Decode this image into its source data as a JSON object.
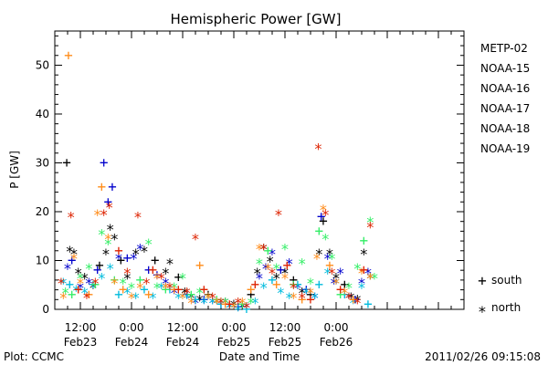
{
  "chart_data": {
    "type": "scatter",
    "title": "Hemispheric Power [GW]",
    "ylabel": "P [GW]",
    "xlabel": "Date and Time",
    "ylim": [
      0,
      57
    ],
    "yticks": [
      0,
      10,
      20,
      30,
      40,
      50
    ],
    "xlim": [
      0,
      96
    ],
    "xticks": [
      {
        "x": 6,
        "time": "12:00",
        "date": "Feb23"
      },
      {
        "x": 18,
        "time": "0:00",
        "date": "Feb24"
      },
      {
        "x": 30,
        "time": "12:00",
        "date": "Feb24"
      },
      {
        "x": 42,
        "time": "0:00",
        "date": "Feb25"
      },
      {
        "x": 54,
        "time": "12:00",
        "date": "Feb25"
      },
      {
        "x": 66,
        "time": "0:00",
        "date": "Feb26"
      }
    ],
    "marker_legend": [
      {
        "glyph": "+",
        "label": "south"
      },
      {
        "glyph": "*",
        "label": "north"
      }
    ],
    "series": [
      {
        "name": "METP-02",
        "color": "#000000",
        "points": [
          [
            2.8,
            30,
            "+"
          ],
          [
            3.5,
            12.5,
            "*"
          ],
          [
            4.5,
            12,
            "*"
          ],
          [
            5.5,
            8,
            "*"
          ],
          [
            7,
            7,
            "*"
          ],
          [
            9,
            5,
            "*"
          ],
          [
            10.5,
            9,
            "+"
          ],
          [
            12,
            12,
            "*"
          ],
          [
            13,
            17,
            "*"
          ],
          [
            14,
            15,
            "*"
          ],
          [
            15.5,
            10,
            "+"
          ],
          [
            17,
            7,
            "*"
          ],
          [
            19,
            12,
            "*"
          ],
          [
            21,
            12.5,
            "*"
          ],
          [
            23.5,
            10,
            "+"
          ],
          [
            26,
            8,
            "*"
          ],
          [
            27,
            10,
            "*"
          ],
          [
            29,
            6.5,
            "+"
          ],
          [
            30.5,
            4,
            "*"
          ],
          [
            32,
            3,
            "*"
          ],
          [
            34,
            2.5,
            "*"
          ],
          [
            36,
            3,
            "+"
          ],
          [
            38,
            2,
            "*"
          ],
          [
            40,
            2,
            "*"
          ],
          [
            42,
            1.5,
            "*"
          ],
          [
            44,
            1,
            "*"
          ],
          [
            46,
            3,
            "+"
          ],
          [
            47.5,
            8,
            "*"
          ],
          [
            49,
            13,
            "*"
          ],
          [
            50.5,
            10.5,
            "*"
          ],
          [
            52,
            7,
            "*"
          ],
          [
            54,
            8,
            "*"
          ],
          [
            56,
            6,
            "+"
          ],
          [
            58,
            4,
            "*"
          ],
          [
            60,
            3,
            "+"
          ],
          [
            62,
            12,
            "*"
          ],
          [
            63,
            18,
            "+"
          ],
          [
            64.5,
            12,
            "*"
          ],
          [
            66,
            7,
            "*"
          ],
          [
            68,
            5,
            "+"
          ],
          [
            69.5,
            3,
            "*"
          ],
          [
            71,
            2.5,
            "*"
          ],
          [
            72.5,
            12,
            "*"
          ],
          [
            74,
            7,
            "*"
          ]
        ]
      },
      {
        "name": "NOAA-15",
        "color": "#0000cc",
        "points": [
          [
            3,
            9,
            "*"
          ],
          [
            4,
            10,
            "+"
          ],
          [
            6,
            5,
            "*"
          ],
          [
            8,
            6,
            "*"
          ],
          [
            10,
            8,
            "+"
          ],
          [
            11.5,
            30,
            "+"
          ],
          [
            12.5,
            22,
            "+"
          ],
          [
            13.5,
            25,
            "+"
          ],
          [
            15,
            11,
            "*"
          ],
          [
            17,
            10.5,
            "+"
          ],
          [
            18.5,
            11,
            "*"
          ],
          [
            20,
            13,
            "*"
          ],
          [
            22,
            8,
            "+"
          ],
          [
            24,
            7,
            "+"
          ],
          [
            26,
            6,
            "*"
          ],
          [
            28,
            4,
            "*"
          ],
          [
            31,
            3,
            "+"
          ],
          [
            33,
            2,
            "*"
          ],
          [
            35,
            2,
            "+"
          ],
          [
            37,
            2,
            "*"
          ],
          [
            39,
            1,
            "+"
          ],
          [
            41,
            1,
            "*"
          ],
          [
            43,
            0.5,
            "+"
          ],
          [
            45,
            1,
            "*"
          ],
          [
            48,
            7,
            "*"
          ],
          [
            49.5,
            9,
            "*"
          ],
          [
            51,
            12,
            "*"
          ],
          [
            53,
            8,
            "+"
          ],
          [
            55,
            10,
            "*"
          ],
          [
            57,
            5,
            "*"
          ],
          [
            59,
            4,
            "+"
          ],
          [
            61,
            3,
            "*"
          ],
          [
            62.5,
            19,
            "+"
          ],
          [
            64,
            11,
            "*"
          ],
          [
            65.5,
            6,
            "*"
          ],
          [
            67,
            8,
            "*"
          ],
          [
            69,
            3,
            "*"
          ],
          [
            70.5,
            2,
            "+"
          ],
          [
            72,
            6,
            "*"
          ],
          [
            73.5,
            8,
            "*"
          ]
        ]
      },
      {
        "name": "NOAA-16",
        "color": "#00bbdd",
        "points": [
          [
            2,
            6,
            "*"
          ],
          [
            3.5,
            5,
            "+"
          ],
          [
            5,
            4.5,
            "*"
          ],
          [
            7,
            4,
            "*"
          ],
          [
            9,
            5,
            "+"
          ],
          [
            11,
            7,
            "*"
          ],
          [
            13,
            9,
            "*"
          ],
          [
            15,
            3,
            "+"
          ],
          [
            17,
            4,
            "*"
          ],
          [
            19,
            3,
            "*"
          ],
          [
            21,
            4,
            "+"
          ],
          [
            23,
            3,
            "*"
          ],
          [
            25,
            5,
            "*"
          ],
          [
            27,
            4,
            "+"
          ],
          [
            29,
            3,
            "*"
          ],
          [
            31,
            3,
            "*"
          ],
          [
            33,
            2,
            "+"
          ],
          [
            35,
            2,
            "*"
          ],
          [
            37,
            2,
            "*"
          ],
          [
            39,
            1,
            "+"
          ],
          [
            41,
            1,
            "*"
          ],
          [
            43,
            0.5,
            "*"
          ],
          [
            45,
            0,
            "+"
          ],
          [
            47,
            2,
            "*"
          ],
          [
            49,
            5,
            "*"
          ],
          [
            51,
            6,
            "+"
          ],
          [
            53,
            4,
            "*"
          ],
          [
            55,
            3,
            "*"
          ],
          [
            57,
            5,
            "+"
          ],
          [
            59,
            4,
            "*"
          ],
          [
            61,
            3,
            "*"
          ],
          [
            62,
            5,
            "+"
          ],
          [
            64,
            8,
            "*"
          ],
          [
            66,
            6,
            "*"
          ],
          [
            68,
            3,
            "+"
          ],
          [
            70,
            2,
            "*"
          ],
          [
            72,
            5,
            "*"
          ],
          [
            73.5,
            1,
            "+"
          ]
        ]
      },
      {
        "name": "NOAA-17",
        "color": "#33ee66",
        "points": [
          [
            2.5,
            4,
            "*"
          ],
          [
            4,
            3,
            "+"
          ],
          [
            6,
            7,
            "*"
          ],
          [
            8,
            9,
            "*"
          ],
          [
            9.5,
            5,
            "+"
          ],
          [
            11,
            16,
            "*"
          ],
          [
            12.5,
            14,
            "*"
          ],
          [
            14,
            6,
            "+"
          ],
          [
            16,
            6,
            "*"
          ],
          [
            18,
            5,
            "*"
          ],
          [
            20,
            6,
            "+"
          ],
          [
            22,
            14,
            "*"
          ],
          [
            24,
            5,
            "*"
          ],
          [
            26,
            4,
            "+"
          ],
          [
            28,
            5,
            "*"
          ],
          [
            30,
            7,
            "*"
          ],
          [
            32,
            3,
            "+"
          ],
          [
            34,
            4,
            "*"
          ],
          [
            36,
            3,
            "*"
          ],
          [
            38,
            2,
            "+"
          ],
          [
            40,
            2,
            "*"
          ],
          [
            42,
            1,
            "*"
          ],
          [
            44,
            1,
            "+"
          ],
          [
            46,
            2,
            "*"
          ],
          [
            48,
            10,
            "*"
          ],
          [
            50,
            12,
            "+"
          ],
          [
            52,
            9,
            "*"
          ],
          [
            54,
            13,
            "*"
          ],
          [
            56,
            5,
            "+"
          ],
          [
            58,
            10,
            "*"
          ],
          [
            60,
            6,
            "*"
          ],
          [
            62,
            16,
            "+"
          ],
          [
            63.5,
            15,
            "*"
          ],
          [
            65,
            11,
            "*"
          ],
          [
            67,
            3,
            "+"
          ],
          [
            69,
            5,
            "*"
          ],
          [
            71,
            9,
            "*"
          ],
          [
            72.5,
            14,
            "+"
          ],
          [
            74,
            18.5,
            "*"
          ],
          [
            75,
            7,
            "*"
          ]
        ]
      },
      {
        "name": "NOAA-18",
        "color": "#ff8c1a",
        "points": [
          [
            2,
            3,
            "*"
          ],
          [
            3.2,
            52,
            "+"
          ],
          [
            4.5,
            11,
            "*"
          ],
          [
            6,
            6,
            "*"
          ],
          [
            8,
            3,
            "+"
          ],
          [
            10,
            20,
            "*"
          ],
          [
            11,
            25,
            "+"
          ],
          [
            12.5,
            15,
            "*"
          ],
          [
            14,
            6,
            "*"
          ],
          [
            16,
            4,
            "+"
          ],
          [
            18,
            3,
            "*"
          ],
          [
            20,
            5,
            "*"
          ],
          [
            22,
            3,
            "+"
          ],
          [
            24,
            7,
            "*"
          ],
          [
            26,
            5,
            "*"
          ],
          [
            28,
            4,
            "+"
          ],
          [
            30,
            3,
            "*"
          ],
          [
            32,
            2,
            "*"
          ],
          [
            34,
            9,
            "+"
          ],
          [
            36,
            3,
            "*"
          ],
          [
            38,
            2,
            "*"
          ],
          [
            40,
            1,
            "+"
          ],
          [
            42,
            1,
            "*"
          ],
          [
            44,
            2,
            "*"
          ],
          [
            46,
            4,
            "+"
          ],
          [
            48,
            13,
            "*"
          ],
          [
            50,
            9,
            "*"
          ],
          [
            52,
            5,
            "+"
          ],
          [
            54,
            7,
            "*"
          ],
          [
            56,
            3,
            "*"
          ],
          [
            58,
            2,
            "+"
          ],
          [
            60,
            4,
            "*"
          ],
          [
            61.5,
            11,
            "*"
          ],
          [
            63,
            21,
            "*"
          ],
          [
            64.5,
            9,
            "+"
          ],
          [
            66,
            6,
            "*"
          ],
          [
            68,
            4,
            "*"
          ],
          [
            70,
            2,
            "+"
          ],
          [
            72,
            8,
            "*"
          ],
          [
            74,
            7,
            "*"
          ]
        ]
      },
      {
        "name": "NOAA-19",
        "color": "#dd2200",
        "points": [
          [
            1.5,
            6,
            "*"
          ],
          [
            3.8,
            19.5,
            "*"
          ],
          [
            5.5,
            4,
            "+"
          ],
          [
            7.5,
            3,
            "*"
          ],
          [
            9.5,
            6,
            "*"
          ],
          [
            11.5,
            20,
            "*"
          ],
          [
            12.8,
            21.5,
            "*"
          ],
          [
            15,
            12,
            "+"
          ],
          [
            17,
            8,
            "*"
          ],
          [
            19.5,
            19.5,
            "*"
          ],
          [
            21.5,
            6,
            "*"
          ],
          [
            23,
            8,
            "+"
          ],
          [
            25,
            7,
            "*"
          ],
          [
            27,
            5,
            "*"
          ],
          [
            29,
            4,
            "+"
          ],
          [
            31,
            4,
            "*"
          ],
          [
            33,
            15,
            "*"
          ],
          [
            35,
            4,
            "+"
          ],
          [
            37,
            3,
            "*"
          ],
          [
            39,
            2,
            "*"
          ],
          [
            41,
            1,
            "+"
          ],
          [
            43,
            2,
            "*"
          ],
          [
            45,
            1,
            "*"
          ],
          [
            47,
            5,
            "+"
          ],
          [
            49,
            13,
            "*"
          ],
          [
            51,
            8,
            "*"
          ],
          [
            52.5,
            20,
            "*"
          ],
          [
            54.5,
            9,
            "+"
          ],
          [
            56,
            5,
            "*"
          ],
          [
            58,
            3,
            "*"
          ],
          [
            60,
            2,
            "+"
          ],
          [
            61.8,
            33.5,
            "*"
          ],
          [
            63.5,
            20,
            "*"
          ],
          [
            65,
            8,
            "*"
          ],
          [
            67,
            4,
            "+"
          ],
          [
            69,
            3,
            "*"
          ],
          [
            71,
            2,
            "*"
          ],
          [
            72.5,
            8,
            "+"
          ],
          [
            74,
            17.5,
            "*"
          ]
        ]
      }
    ]
  },
  "footer": {
    "left": "Plot: CCMC",
    "right": "2011/02/26 09:15:08"
  }
}
